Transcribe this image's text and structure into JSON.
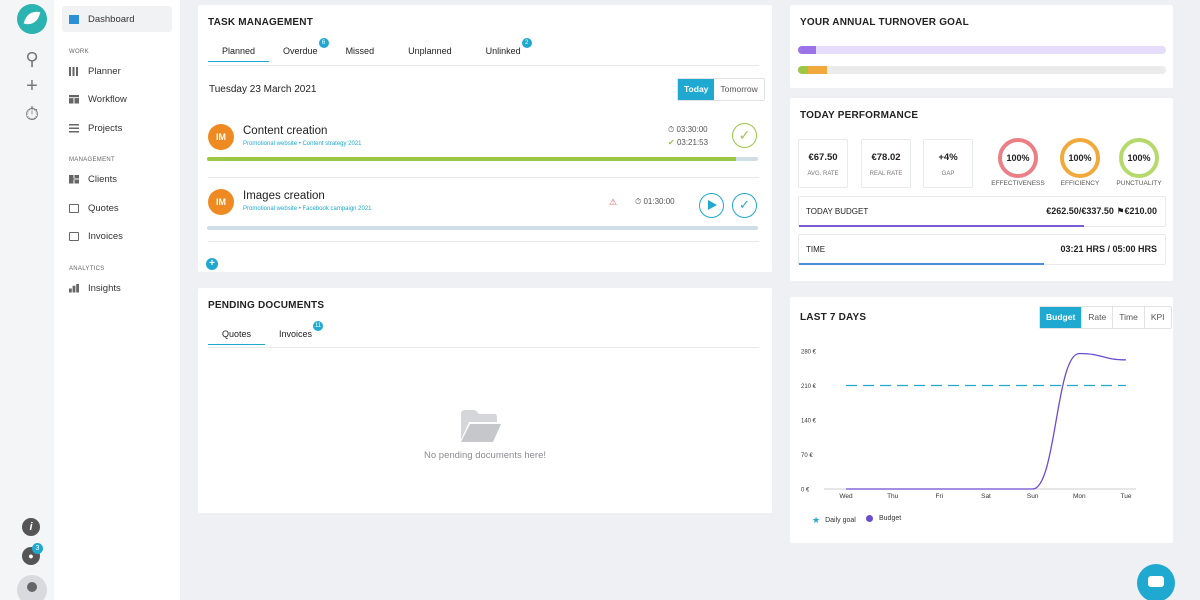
{
  "sidebar": {
    "items": [
      {
        "label": "Dashboard",
        "icon": "dashboard-icon"
      },
      {
        "label": "Planner",
        "icon": "planner-icon"
      },
      {
        "label": "Workflow",
        "icon": "workflow-icon"
      },
      {
        "label": "Projects",
        "icon": "projects-icon"
      },
      {
        "label": "Clients",
        "icon": "clients-icon"
      },
      {
        "label": "Quotes",
        "icon": "quotes-icon"
      },
      {
        "label": "Invoices",
        "icon": "invoices-icon"
      },
      {
        "label": "Insights",
        "icon": "insights-icon"
      }
    ],
    "sections": {
      "work": "WORK",
      "management": "MANAGEMENT",
      "analytics": "ANALYTICS"
    }
  },
  "rail": {
    "notifications_count": "3",
    "info_glyph": "i"
  },
  "task_management": {
    "title": "TASK MANAGEMENT",
    "tabs": [
      {
        "label": "Planned",
        "badge": ""
      },
      {
        "label": "Overdue",
        "badge": "6"
      },
      {
        "label": "Missed",
        "badge": ""
      },
      {
        "label": "Unplanned",
        "badge": ""
      },
      {
        "label": "Unlinked",
        "badge": "2"
      }
    ],
    "date": "Tuesday 23 March 2021",
    "toggle": {
      "today": "Today",
      "tomorrow": "Tomorrow"
    },
    "tasks": [
      {
        "initials": "IM",
        "title": "Content creation",
        "project": "Promotional website",
        "sub": "Content strategy 2021",
        "planned_time": "03:30:00",
        "done_time": "03:21:53",
        "progress": 0.96
      },
      {
        "initials": "IM",
        "title": "Images creation",
        "project": "Promotional website",
        "sub": "Facebook campaign 2021",
        "planned_time": "01:30:00",
        "progress": 0
      }
    ],
    "add_glyph": "+"
  },
  "pending_documents": {
    "title": "PENDING DOCUMENTS",
    "tabs": [
      {
        "label": "Quotes",
        "badge": ""
      },
      {
        "label": "Invoices",
        "badge": "11"
      }
    ],
    "empty_text": "No pending documents here!"
  },
  "turnover": {
    "title": "YOUR ANNUAL TURNOVER GOAL",
    "bars": [
      {
        "fill": 0.05,
        "color": "#9b72e8",
        "track": "#e6dcfb"
      },
      {
        "fill": 0.08,
        "color": "#f2a93b",
        "track": "#ebebeb",
        "lead": "#9bc646"
      }
    ]
  },
  "performance": {
    "title": "TODAY PERFORMANCE",
    "stats": [
      {
        "value": "€67.50",
        "label": "AVG. RATE"
      },
      {
        "value": "€78.02",
        "label": "REAL RATE"
      },
      {
        "value": "+4%",
        "label": "GAP"
      }
    ],
    "rings": [
      {
        "value": "100%",
        "label": "EFFECTIVENESS",
        "color": "#ec7f85"
      },
      {
        "value": "100%",
        "label": "EFFICIENCY",
        "color": "#f2a93b"
      },
      {
        "value": "100%",
        "label": "PUNCTUALITY",
        "color": "#b6d96b"
      }
    ],
    "budget": {
      "label": "TODAY BUDGET",
      "value": "€262.50/€337.50",
      "flag_value": "€210.00",
      "progress": 0.78
    },
    "time": {
      "label": "TIME",
      "value": "03:21 HRS / 05:00 HRS",
      "progress": 0.67
    }
  },
  "last7": {
    "title": "LAST 7 DAYS",
    "toggle": [
      "Budget",
      "Rate",
      "Time",
      "KPI"
    ],
    "legend": {
      "goal": "Daily goal",
      "budget": "Budget"
    }
  },
  "chart_data": {
    "type": "line",
    "categories": [
      "Wed",
      "Thu",
      "Fri",
      "Sat",
      "Sun",
      "Mon",
      "Tue"
    ],
    "yticks": [
      "280 €",
      "210 €",
      "140 €",
      "70 €",
      "0 €"
    ],
    "ylim": [
      0,
      280
    ],
    "series": [
      {
        "name": "Budget",
        "values": [
          0,
          0,
          0,
          0,
          0,
          275,
          262
        ],
        "color": "#6b4ccf"
      },
      {
        "name": "Daily goal",
        "values": [
          210,
          210,
          210,
          210,
          210,
          210,
          210
        ],
        "color": "#1fa9d1",
        "dashed": true
      }
    ]
  }
}
